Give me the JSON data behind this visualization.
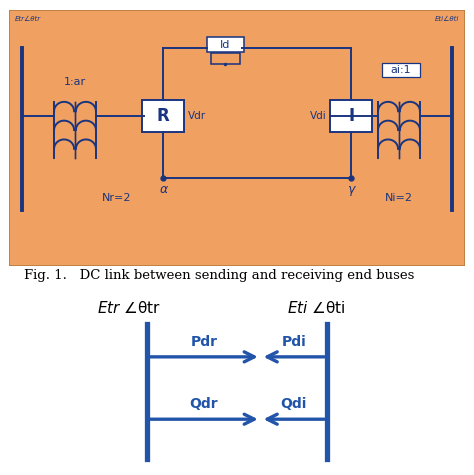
{
  "bg_color": "#F0A060",
  "circuit_color": "#1a3580",
  "box_facecolor": "#ffffff",
  "fig_caption": "Fig. 1.   DC link between sending and receiving end buses",
  "caption_fontsize": 9.5,
  "arrow_color": "#2255aa",
  "label_color": "#1a3580",
  "top_left_label": "Etr∠θtr",
  "top_right_label": "Eti∠θti",
  "etr_label": "Etr ∠θtr",
  "eti_label": "Eti ∠θti"
}
